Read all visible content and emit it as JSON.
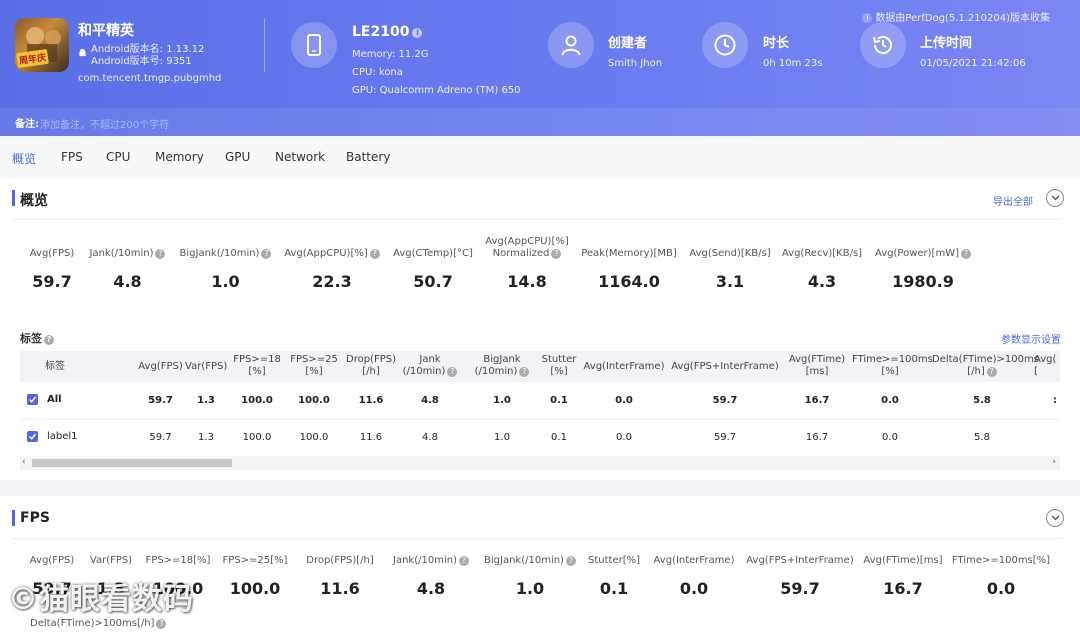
{
  "app": {
    "name": "和平精英",
    "icon_tag": "周年庆",
    "android_version_name": "Android版本名: 1.13.12",
    "android_version_code": "Android版本号: 9351",
    "package": "com.tencent.tmgp.pubgmhd"
  },
  "device": {
    "name": "LE2100",
    "memory": "Memory: 11.2G",
    "cpu": "CPU: kona",
    "gpu": "GPU: Qualcomm Adreno (TM) 650"
  },
  "creator": {
    "title": "创建者",
    "value": "Smith Jhon"
  },
  "duration": {
    "title": "时长",
    "value": "0h 10m 23s"
  },
  "upload": {
    "title": "上传时间",
    "value": "01/05/2021 21:42:06"
  },
  "collect_note": "数据由PerfDog(5.1.210204)版本收集",
  "note": {
    "label": "备注:",
    "placeholder": "添加备注，不超过200个字符"
  },
  "tabs": [
    "概览",
    "FPS",
    "CPU",
    "Memory",
    "GPU",
    "Network",
    "Battery"
  ],
  "overview": {
    "title": "概览",
    "export_label": "导出全部",
    "metrics": [
      {
        "label": "Avg(FPS)",
        "value": "59.7"
      },
      {
        "label": "Jank(/10min)",
        "value": "4.8"
      },
      {
        "label": "BigJank(/10min)",
        "value": "1.0"
      },
      {
        "label": "Avg(AppCPU)[%]",
        "value": "22.3"
      },
      {
        "label": "Avg(CTemp)[°C]",
        "value": "50.7"
      },
      {
        "label": "Avg(AppCPU)[%]",
        "label2": "Normalized",
        "value": "14.8"
      },
      {
        "label": "Peak(Memory)[MB]",
        "value": "1164.0"
      },
      {
        "label": "Avg(Send)[KB/s]",
        "value": "3.1"
      },
      {
        "label": "Avg(Recv)[KB/s]",
        "value": "4.3"
      },
      {
        "label": "Avg(Power)[mW]",
        "value": "1980.9"
      }
    ],
    "labels_title": "标签",
    "param_settings": "参数显示设置",
    "table": {
      "headers": [
        [
          "标签"
        ],
        [
          "Avg(FPS)"
        ],
        [
          "Var(FPS)"
        ],
        [
          "FPS>=18",
          "[%]"
        ],
        [
          "FPS>=25",
          "[%]"
        ],
        [
          "Drop(FPS)",
          "[/h]"
        ],
        [
          "Jank",
          "(/10min)"
        ],
        [
          "BigJank",
          "(/10min)"
        ],
        [
          "Stutter",
          "[%]"
        ],
        [
          "Avg(InterFrame)"
        ],
        [
          "Avg(FPS+InterFrame)"
        ],
        [
          "Avg(FTime)",
          "[ms]"
        ],
        [
          "FTime>=100ms",
          "[%]"
        ],
        [
          "Delta(FTime)>100ms",
          "[/h]"
        ],
        [
          "Avg(",
          "["
        ]
      ],
      "rows": [
        [
          "All",
          "59.7",
          "1.3",
          "100.0",
          "100.0",
          "11.6",
          "4.8",
          "1.0",
          "0.1",
          "0.0",
          "59.7",
          "16.7",
          "0.0",
          "5.8",
          ":"
        ],
        [
          "label1",
          "59.7",
          "1.3",
          "100.0",
          "100.0",
          "11.6",
          "4.8",
          "1.0",
          "0.1",
          "0.0",
          "59.7",
          "16.7",
          "0.0",
          "5.8",
          ""
        ]
      ]
    }
  },
  "fps": {
    "title": "FPS",
    "metrics": [
      {
        "label": "Avg(FPS)",
        "value": "59.7"
      },
      {
        "label": "Var(FPS)",
        "value": "1.3"
      },
      {
        "label": "FPS>=18[%]",
        "value": "100.0"
      },
      {
        "label": "FPS>=25[%]",
        "value": "100.0"
      },
      {
        "label": "Drop(FPS)[/h]",
        "value": "11.6"
      },
      {
        "label": "Jank(/10min)",
        "value": "4.8"
      },
      {
        "label": "BigJank(/10min)",
        "value": "1.0"
      },
      {
        "label": "Stutter[%]",
        "value": "0.1"
      },
      {
        "label": "Avg(InterFrame)",
        "value": "0.0"
      },
      {
        "label": "Avg(FPS+InterFrame)",
        "value": "59.7"
      },
      {
        "label": "Avg(FTime)[ms]",
        "value": "16.7"
      },
      {
        "label": "FTime>=100ms[%]",
        "value": "0.0"
      }
    ],
    "extra_label": "Delta(FTime)>100ms[/h]"
  },
  "watermark": "©猫眼看数码"
}
